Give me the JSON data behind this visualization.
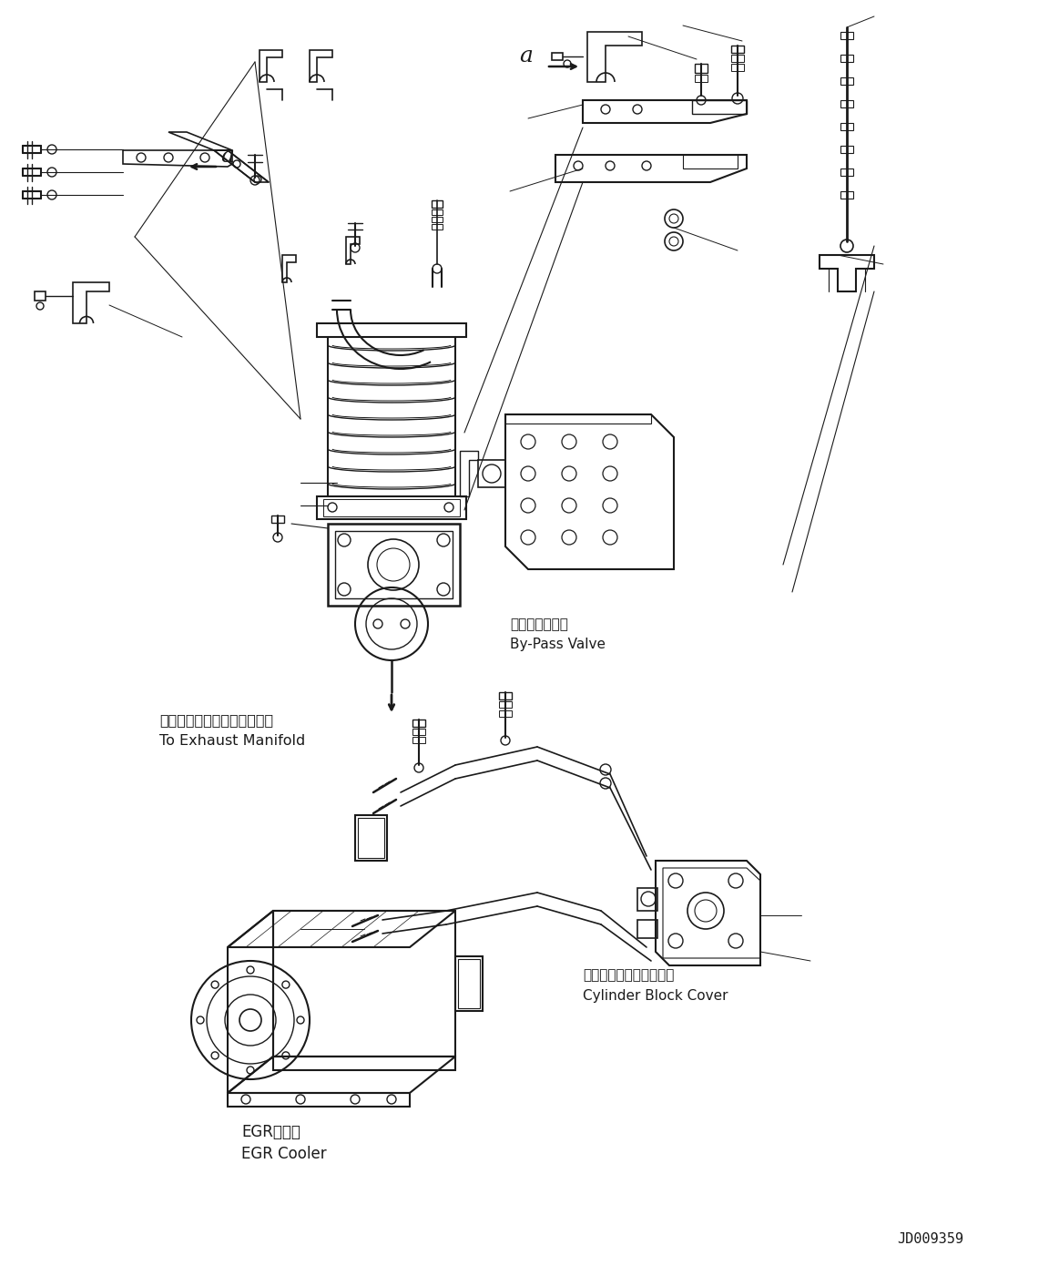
{
  "bg_color": "#ffffff",
  "line_color": "#1a1a1a",
  "title_code": "JD009359",
  "labels": {
    "bypass_valve_jp": "バイパスバルブ",
    "bypass_valve_en": "By-Pass Valve",
    "exhaust_jp": "エキゾーストマニホールドへ",
    "exhaust_en": "To Exhaust Manifold",
    "cylinder_jp": "シリンダブロックカバー",
    "cylinder_en": "Cylinder Block Cover",
    "egr_jp": "EGRクーラ",
    "egr_en": "EGR Cooler",
    "label_a": "a"
  },
  "figsize": [
    11.63,
    14.01
  ],
  "dpi": 100
}
